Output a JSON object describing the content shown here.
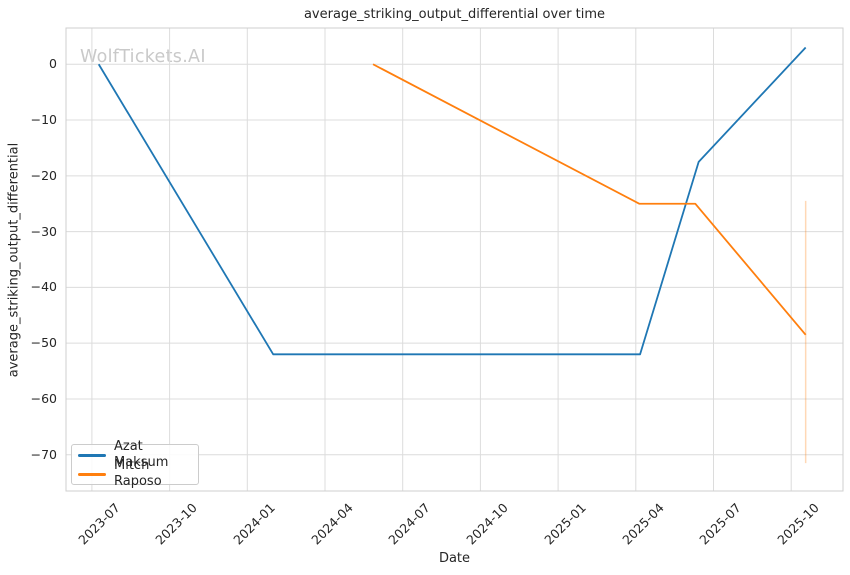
{
  "watermark": "WolfTickets.AI",
  "chart_data": {
    "type": "line",
    "title": "average_striking_output_differential over time",
    "xlabel": "Date",
    "ylabel": "average_striking_output_differential",
    "grid": true,
    "legend_position": "lower left",
    "xlim": [
      "2023-06-01",
      "2025-12-01"
    ],
    "ylim": [
      -76.5,
      6.5
    ],
    "x_ticks": [
      {
        "label": "2023-07",
        "date": "2023-07-01"
      },
      {
        "label": "2023-10",
        "date": "2023-10-01"
      },
      {
        "label": "2024-01",
        "date": "2024-01-01"
      },
      {
        "label": "2024-04",
        "date": "2024-04-01"
      },
      {
        "label": "2024-07",
        "date": "2024-07-01"
      },
      {
        "label": "2024-10",
        "date": "2024-10-01"
      },
      {
        "label": "2025-01",
        "date": "2025-01-01"
      },
      {
        "label": "2025-04",
        "date": "2025-04-01"
      },
      {
        "label": "2025-07",
        "date": "2025-07-01"
      },
      {
        "label": "2025-10",
        "date": "2025-10-01"
      }
    ],
    "y_ticks": [
      {
        "label": "0",
        "value": 0
      },
      {
        "label": "−10",
        "value": -10
      },
      {
        "label": "−20",
        "value": -20
      },
      {
        "label": "−30",
        "value": -30
      },
      {
        "label": "−40",
        "value": -40
      },
      {
        "label": "−50",
        "value": -50
      },
      {
        "label": "−60",
        "value": -60
      },
      {
        "label": "−70",
        "value": -70
      }
    ],
    "series": [
      {
        "name": "Azat Maksum",
        "color": "#1f77b4",
        "points": [
          [
            "2023-07-09",
            0
          ],
          [
            "2024-02-01",
            -52
          ],
          [
            "2025-04-06",
            -52
          ],
          [
            "2025-06-14",
            -17.5
          ],
          [
            "2025-10-18",
            3
          ]
        ]
      },
      {
        "name": "Mitch Raposo",
        "color": "#ff7f0e",
        "points": [
          [
            "2024-05-27",
            0
          ],
          [
            "2025-04-05",
            -25
          ],
          [
            "2025-06-10",
            -25
          ],
          [
            "2025-10-18",
            -48.5
          ]
        ],
        "error_bar": {
          "date": "2025-10-18",
          "low": -71.5,
          "high": -24.5,
          "opacity": 0.3
        }
      }
    ]
  }
}
